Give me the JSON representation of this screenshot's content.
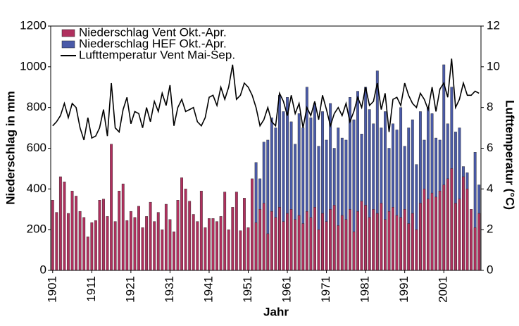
{
  "chart_data": {
    "type": "bar",
    "xlabel": "Jahr",
    "ylabel": "Niederschlag in mm",
    "y2label": "Lufttemperatur (°C)",
    "x": [
      1901,
      1902,
      1903,
      1904,
      1905,
      1906,
      1907,
      1908,
      1909,
      1910,
      1911,
      1912,
      1913,
      1914,
      1915,
      1916,
      1917,
      1918,
      1919,
      1920,
      1921,
      1922,
      1923,
      1924,
      1925,
      1926,
      1927,
      1928,
      1929,
      1930,
      1931,
      1932,
      1933,
      1934,
      1935,
      1936,
      1937,
      1938,
      1939,
      1940,
      1941,
      1942,
      1943,
      1944,
      1945,
      1946,
      1947,
      1948,
      1949,
      1950,
      1951,
      1952,
      1953,
      1954,
      1955,
      1956,
      1957,
      1958,
      1959,
      1960,
      1961,
      1962,
      1963,
      1964,
      1965,
      1966,
      1967,
      1968,
      1969,
      1970,
      1971,
      1972,
      1973,
      1974,
      1975,
      1976,
      1977,
      1978,
      1979,
      1980,
      1981,
      1982,
      1983,
      1984,
      1985,
      1986,
      1987,
      1988,
      1989,
      1990,
      1991,
      1992,
      1993,
      1994,
      1995,
      1996,
      1997,
      1998,
      1999,
      2000,
      2001,
      2002,
      2003,
      2004,
      2005,
      2006,
      2007,
      2008,
      2009,
      2010
    ],
    "xlim": [
      1900.5,
      2010.5
    ],
    "xticks": [
      1901,
      1911,
      1921,
      1931,
      1941,
      1951,
      1961,
      1971,
      1981,
      1991,
      2001
    ],
    "ylim": [
      0,
      1200
    ],
    "yticks": [
      0,
      200,
      400,
      600,
      800,
      1000,
      1200
    ],
    "y2lim": [
      0,
      12
    ],
    "y2ticks": [
      0,
      2,
      4,
      6,
      8,
      10,
      12
    ],
    "legend": "upper left",
    "series": [
      {
        "name": "Niederschlag HEF Okt.-Apr.",
        "color": "#4a5aa8",
        "type": "bar",
        "values": [
          null,
          null,
          null,
          null,
          null,
          null,
          null,
          null,
          null,
          null,
          null,
          null,
          null,
          null,
          null,
          null,
          null,
          null,
          null,
          null,
          null,
          null,
          null,
          null,
          null,
          null,
          null,
          null,
          null,
          null,
          null,
          null,
          null,
          null,
          null,
          null,
          null,
          null,
          null,
          null,
          null,
          null,
          null,
          null,
          null,
          null,
          null,
          null,
          null,
          null,
          null,
          null,
          530,
          450,
          630,
          640,
          750,
          700,
          860,
          780,
          850,
          730,
          620,
          770,
          700,
          900,
          750,
          820,
          610,
          780,
          640,
          820,
          600,
          700,
          650,
          640,
          850,
          740,
          880,
          670,
          900,
          790,
          720,
          980,
          700,
          780,
          600,
          720,
          690,
          800,
          610,
          700,
          740,
          520,
          780,
          640,
          800,
          770,
          650,
          640,
          1010,
          720,
          900,
          680,
          700,
          510,
          480,
          200,
          580,
          420
        ]
      },
      {
        "name": "Niederschlag Vent Okt.-Apr.",
        "color": "#b0305e",
        "type": "bar",
        "values": [
          345,
          285,
          460,
          435,
          280,
          390,
          365,
          290,
          260,
          165,
          235,
          245,
          345,
          350,
          265,
          620,
          240,
          390,
          425,
          245,
          290,
          260,
          315,
          210,
          265,
          335,
          240,
          285,
          200,
          325,
          250,
          190,
          345,
          455,
          400,
          340,
          275,
          240,
          390,
          210,
          255,
          255,
          240,
          265,
          385,
          200,
          310,
          385,
          195,
          355,
          210,
          450,
          235,
          300,
          330,
          180,
          290,
          260,
          310,
          240,
          280,
          300,
          250,
          270,
          230,
          290,
          260,
          310,
          200,
          280,
          240,
          300,
          320,
          220,
          270,
          250,
          300,
          190,
          290,
          340,
          320,
          260,
          300,
          280,
          330,
          250,
          290,
          310,
          270,
          260,
          300,
          230,
          280,
          200,
          330,
          400,
          350,
          380,
          360,
          390,
          420,
          450,
          500,
          330,
          350,
          460,
          400,
          300,
          210,
          280
        ]
      },
      {
        "name": "Lufttemperatur Vent Mai-Sep.",
        "color": "#000000",
        "type": "line",
        "axis": "y2",
        "values": [
          7.1,
          7.3,
          7.6,
          8.2,
          7.5,
          8.2,
          8.0,
          7.0,
          6.4,
          7.5,
          6.5,
          6.6,
          7.0,
          7.9,
          6.6,
          9.2,
          7.0,
          6.8,
          7.9,
          8.5,
          7.2,
          7.8,
          7.7,
          7.0,
          8.0,
          7.3,
          8.3,
          7.8,
          8.7,
          8.1,
          9.1,
          7.1,
          8.0,
          8.4,
          7.8,
          7.9,
          8.0,
          7.3,
          7.1,
          7.5,
          8.5,
          8.6,
          8.1,
          9.0,
          8.4,
          9.0,
          10.1,
          8.4,
          8.6,
          9.2,
          9.0,
          8.6,
          8.0,
          7.1,
          7.4,
          8.0,
          7.3,
          7.1,
          8.7,
          8.3,
          7.6,
          8.6,
          7.7,
          8.2,
          7.0,
          8.0,
          7.6,
          8.3,
          7.4,
          8.6,
          7.9,
          7.1,
          7.7,
          8.0,
          7.6,
          8.2,
          7.3,
          7.8,
          8.5,
          8.0,
          9.0,
          8.1,
          8.3,
          9.2,
          7.9,
          8.7,
          6.8,
          8.4,
          8.5,
          8.1,
          9.2,
          8.6,
          8.2,
          8.0,
          8.7,
          8.4,
          7.9,
          9.0,
          7.8,
          8.9,
          9.2,
          8.5,
          10.4,
          8.0,
          8.4,
          9.2,
          8.6,
          8.6,
          8.8,
          8.7
        ]
      }
    ]
  }
}
